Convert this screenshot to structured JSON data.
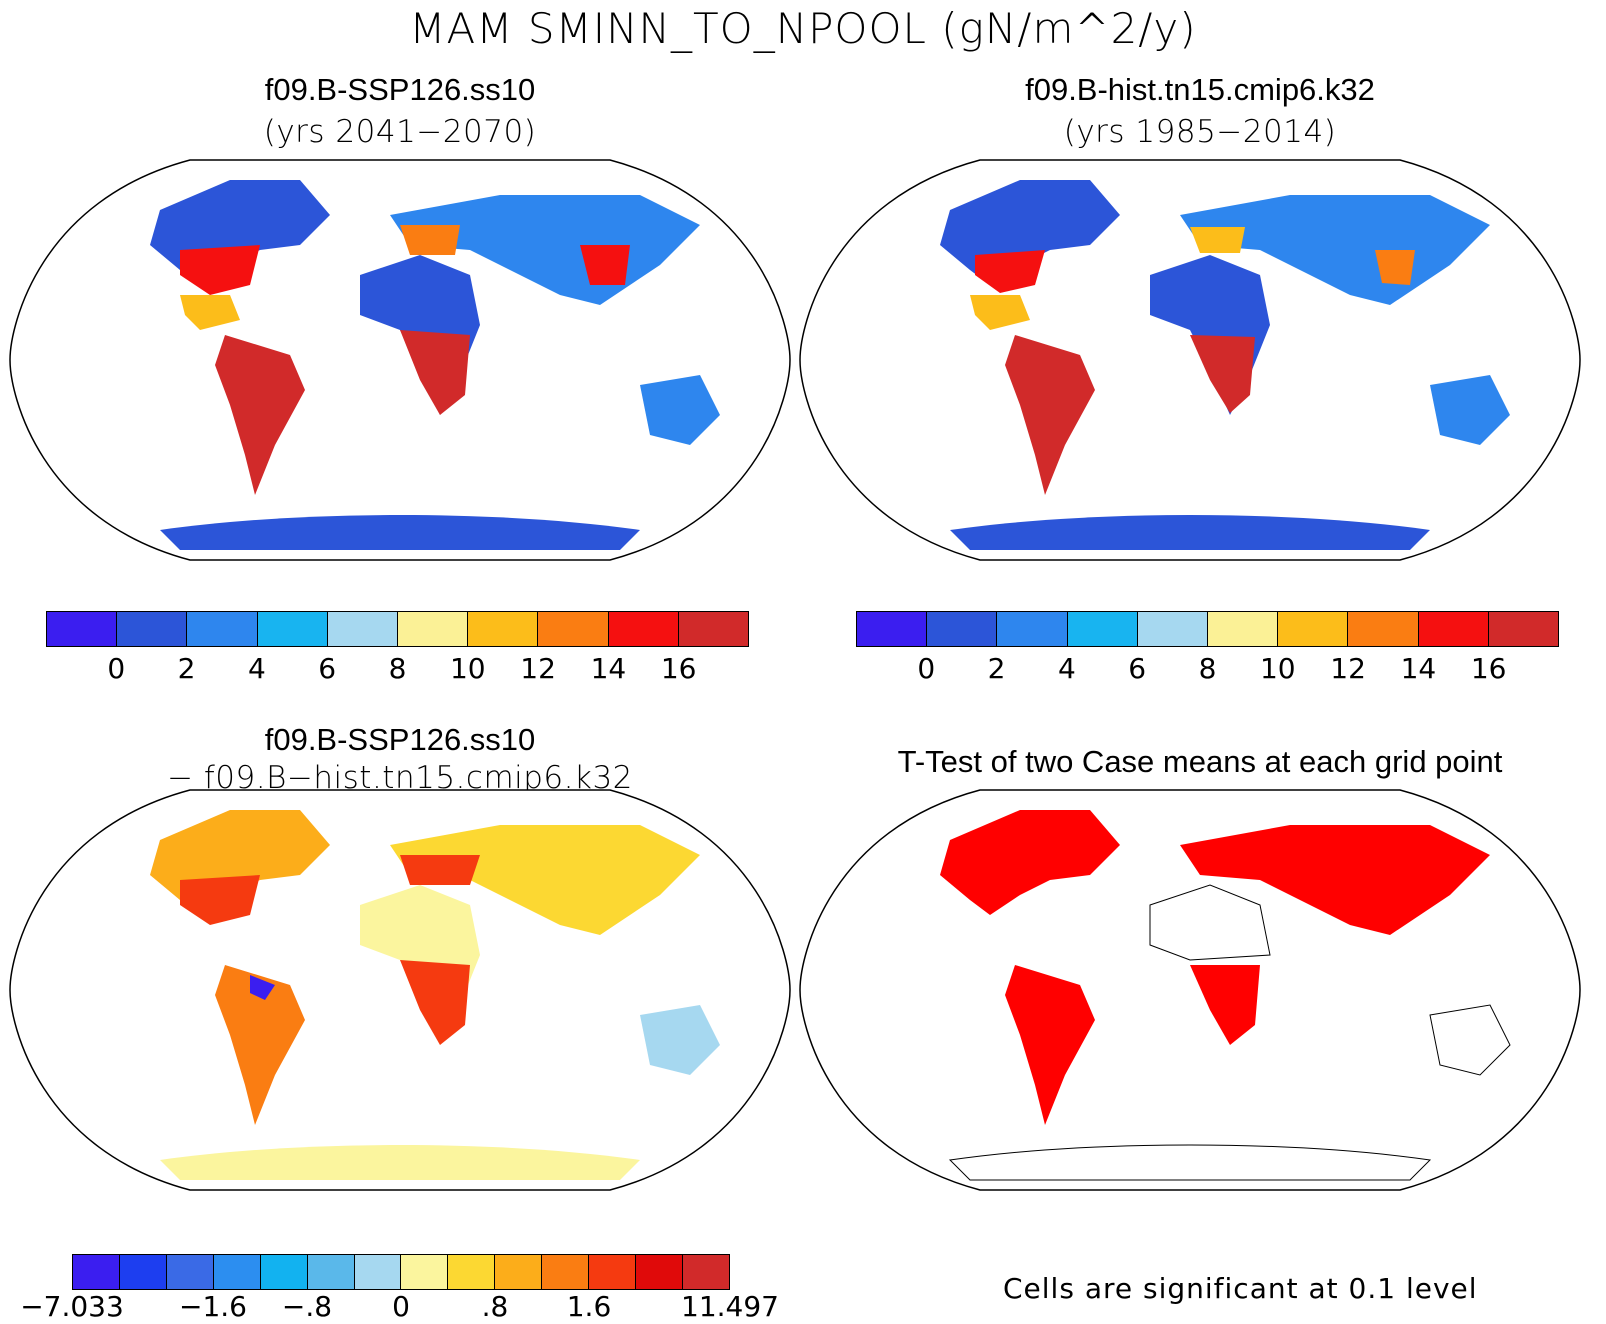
{
  "title": "MAM SMINN_TO_NPOOL (gN/m^2/y)",
  "panels": {
    "top_left": {
      "case": "f09.B-SSP126.ss10",
      "years": "(yrs 2041−2070)"
    },
    "top_right": {
      "case": "f09.B-hist.tn15.cmip6.k32",
      "years": "(yrs 1985−2014)"
    },
    "bottom_left": {
      "case": "f09.B-SSP126.ss10",
      "minus_case": "− f09.B−hist.tn15.cmip6.k32"
    },
    "bottom_right": {
      "title": "T-Test of two Case means at each grid point"
    }
  },
  "colorbar_abs": {
    "colors": [
      "#3b1ef0",
      "#2c55d8",
      "#2e86ee",
      "#18b4f0",
      "#a6d8f0",
      "#fbf196",
      "#fcbd1a",
      "#fa7d12",
      "#f51010",
      "#d12a2a"
    ],
    "labels": [
      "0",
      "2",
      "4",
      "6",
      "8",
      "10",
      "12",
      "14",
      "16"
    ]
  },
  "colorbar_diff": {
    "colors": [
      "#3b1ef0",
      "#1d3ef0",
      "#3a6ae6",
      "#2c8ef0",
      "#12b2f0",
      "#5ab8ea",
      "#a6d8f0",
      "#fbf59e",
      "#fcd832",
      "#fcad1a",
      "#fa7d12",
      "#f53a10",
      "#e00a0a",
      "#d12a2a"
    ],
    "labels": [
      "−7.033",
      "−1.6",
      "−.8",
      "0",
      ".8",
      "1.6",
      "11.497"
    ]
  },
  "significance_note": "Cells are significant at 0.1 level",
  "significance_color": "#ff0000"
}
